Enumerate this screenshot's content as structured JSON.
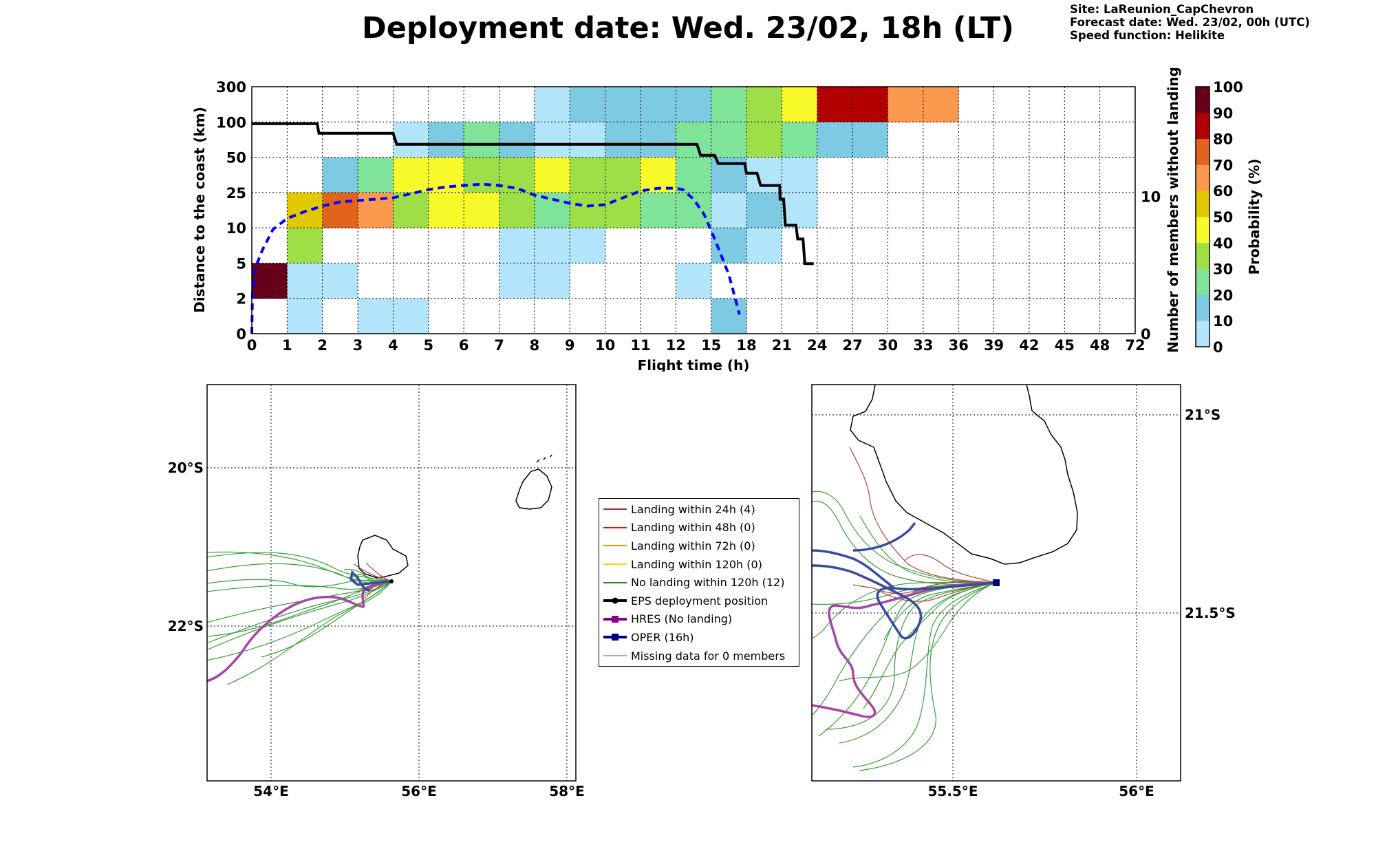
{
  "title": "Deployment date: Wed. 23/02, 18h (LT)",
  "meta": {
    "site": "Site: LaReunion_CapChevron",
    "forecast_date": "Forecast date: Wed. 23/02, 00h (UTC)",
    "speed_function": "Speed function: Helikite"
  },
  "chart_data": [
    {
      "type": "heatmap",
      "xlabel": "Flight time (h)",
      "ylabel": "Distance to the coast (km)",
      "y2label": "Number of members without landing",
      "x_ticks": [
        "0",
        "1",
        "2",
        "3",
        "4",
        "5",
        "6",
        "7",
        "8",
        "9",
        "10",
        "11",
        "12",
        "15",
        "18",
        "21",
        "24",
        "27",
        "30",
        "33",
        "36",
        "39",
        "42",
        "45",
        "48",
        "72"
      ],
      "y_ticks": [
        "0",
        "2",
        "5",
        "10",
        "25",
        "50",
        "100",
        "300"
      ],
      "y2_ticks": [
        "0",
        "10"
      ],
      "y2lim": [
        0,
        18
      ],
      "grid": true,
      "colorbar": {
        "label": "Probability (%)",
        "ticks": [
          "0",
          "10",
          "20",
          "30",
          "40",
          "50",
          "60",
          "70",
          "80",
          "90",
          "100"
        ],
        "colors": [
          "#b3e5fa",
          "#7ecae3",
          "#80e39a",
          "#9ede46",
          "#f8f92a",
          "#e2c800",
          "#fb9a4e",
          "#e2631c",
          "#b20000",
          "#670019"
        ]
      },
      "cells": [
        [
          0,
          0,
          0,
          0,
          0,
          0,
          0,
          0,
          1,
          2,
          2,
          2,
          2,
          3,
          4,
          5,
          9,
          9,
          7,
          7,
          0,
          0,
          0,
          0,
          0
        ],
        [
          0,
          0,
          0,
          0,
          1,
          2,
          3,
          2,
          1,
          1,
          2,
          2,
          3,
          3,
          4,
          3,
          2,
          2,
          0,
          0,
          0,
          0,
          0,
          0,
          0
        ],
        [
          0,
          0,
          2,
          3,
          5,
          5,
          4,
          4,
          5,
          4,
          4,
          5,
          3,
          2,
          1,
          1,
          0,
          0,
          0,
          0,
          0,
          0,
          0,
          0,
          0
        ],
        [
          0,
          6,
          8,
          7,
          4,
          5,
          5,
          4,
          3,
          4,
          4,
          3,
          3,
          1,
          2,
          1,
          0,
          0,
          0,
          0,
          0,
          0,
          0,
          0,
          0
        ],
        [
          0,
          4,
          0,
          0,
          0,
          0,
          0,
          1,
          1,
          1,
          0,
          0,
          0,
          2,
          1,
          0,
          0,
          0,
          0,
          0,
          0,
          0,
          0,
          0,
          0
        ],
        [
          10,
          1,
          1,
          0,
          0,
          0,
          0,
          1,
          1,
          0,
          0,
          0,
          1,
          0,
          0,
          0,
          0,
          0,
          0,
          0,
          0,
          0,
          0,
          0,
          0
        ],
        [
          0,
          1,
          0,
          1,
          1,
          0,
          0,
          0,
          0,
          0,
          0,
          0,
          0,
          2,
          0,
          0,
          0,
          0,
          0,
          0,
          0,
          0,
          0,
          0,
          0
        ]
      ],
      "cells_note": "",
      "series": [
        {
          "name": "",
          "style": "dashed-blue",
          "x": [
            0,
            0.02,
            0.1,
            0.3,
            0.6,
            1,
            1.5,
            2,
            2.5,
            3,
            3.5,
            4,
            4.5,
            5,
            5.5,
            6,
            6.5,
            7,
            7.5,
            8,
            8.5,
            9,
            9.5,
            10,
            10.5,
            11,
            11.5,
            12,
            12.2,
            12.5,
            12.8,
            13.1,
            13.5,
            13.8
          ],
          "y": [
            0,
            3.0,
            4.8,
            6.1,
            7.6,
            8.4,
            8.9,
            9.3,
            9.6,
            9.7,
            9.8,
            9.9,
            10.2,
            10.5,
            10.7,
            10.8,
            10.9,
            10.8,
            10.6,
            10.1,
            9.8,
            9.5,
            9.3,
            9.4,
            9.9,
            10.4,
            10.6,
            10.6,
            10.5,
            9.8,
            8.7,
            6.9,
            4.3,
            1.4
          ]
        },
        {
          "name": "",
          "style": "solid-black",
          "axis": "y2",
          "x": [
            0,
            1.85,
            1.9,
            4.0,
            4.1,
            12.6,
            12.7,
            13.1,
            13.2,
            13.95,
            14.0,
            14.3,
            14.4,
            14.94,
            14.95,
            15.05,
            15.1,
            15.4,
            15.45,
            15.6,
            15.65,
            15.9
          ],
          "y": [
            15.3,
            15.3,
            14.6,
            14.6,
            13.8,
            13.8,
            13.0,
            13.0,
            12.4,
            12.4,
            11.7,
            11.7,
            10.8,
            10.8,
            9.8,
            9.8,
            7.9,
            7.9,
            6.9,
            6.9,
            5.1,
            5.1
          ]
        }
      ]
    },
    {
      "type": "map",
      "region": "overview",
      "lon_ticks": [
        "54°E",
        "56°E",
        "58°E"
      ],
      "lat_ticks": [
        "20°S",
        "22°S"
      ],
      "lon_range": [
        53.14,
        58.14
      ],
      "lat_range": [
        -23.94,
        -18.9
      ]
    },
    {
      "type": "map",
      "region": "zoom",
      "lon_ticks": [
        "55.5°E",
        "56°E"
      ],
      "lat_ticks": [
        "21°S",
        "21.5°S"
      ],
      "lon_range": [
        55.1,
        56.1
      ],
      "lat_range": [
        -21.91,
        -20.92
      ],
      "deployment_point": {
        "lon": 55.62,
        "lat": -21.37
      }
    }
  ],
  "legend": {
    "items": [
      {
        "label": "Landing within 24h (4)",
        "color": "#a52a2a",
        "symbol": "line"
      },
      {
        "label": "Landing within 48h (0)",
        "color": "#ff0000",
        "symbol": "line"
      },
      {
        "label": "Landing within 72h (0)",
        "color": "#ff8c00",
        "symbol": "line"
      },
      {
        "label": "Landing within 120h (0)",
        "color": "#ffd700",
        "symbol": "line"
      },
      {
        "label": "No landing within 120h (12)",
        "color": "#228b22",
        "symbol": "line"
      },
      {
        "label": "EPS deployment position",
        "color": "#000000",
        "symbol": "dot"
      },
      {
        "label": "HRES (No landing)",
        "color": "#8b008b",
        "symbol": "square"
      },
      {
        "label": "OPER (16h)",
        "color": "#000080",
        "symbol": "square"
      },
      {
        "label": "Missing data for 0 members",
        "color": "#4040ff",
        "symbol": "thin"
      }
    ]
  },
  "colors": {
    "eps_no_landing": "#2e9a2e",
    "eps_landing_24h": "#b5443c",
    "hres": "#a845a8",
    "oper": "#3a4aa0",
    "coast": "#000000"
  }
}
